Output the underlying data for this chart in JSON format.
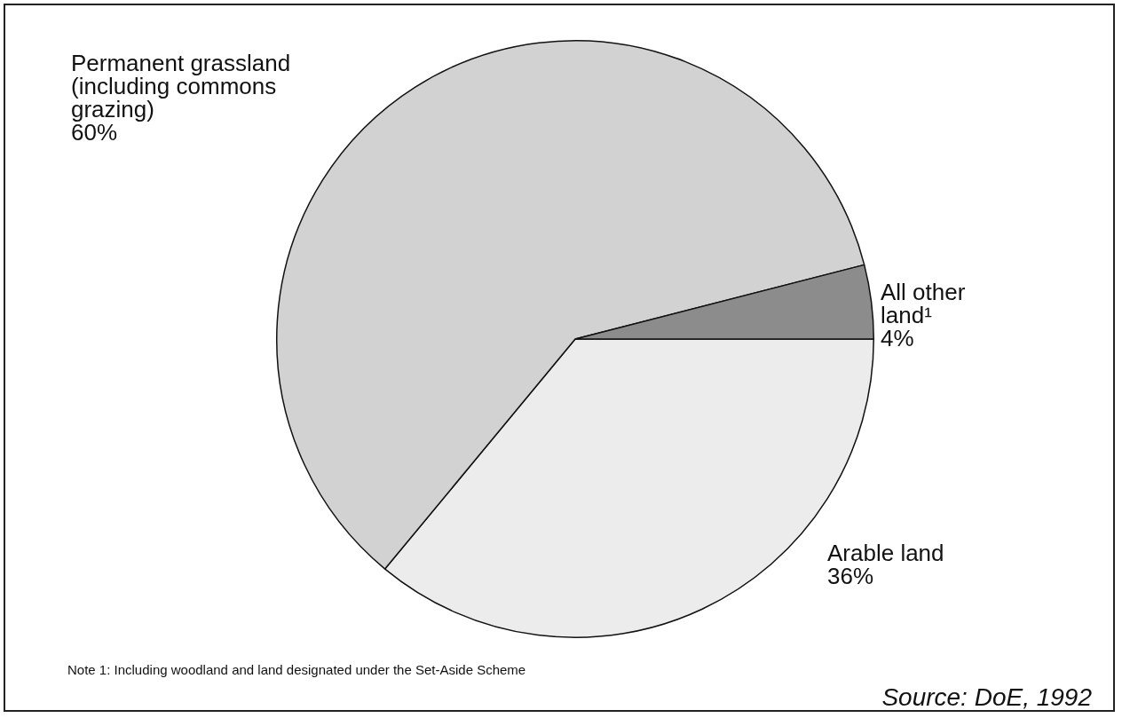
{
  "chart_data": {
    "type": "pie",
    "categories": [
      "Arable land",
      "Permanent grassland (including commons grazing)",
      "All other land¹"
    ],
    "values": [
      36,
      60,
      4
    ],
    "value_labels": [
      "36%",
      "60%",
      "4%"
    ],
    "colors": [
      "#ececec",
      "#d2d2d2",
      "#8c8c8c"
    ],
    "legend": false,
    "annotations": [
      "Note 1: Including woodland and land designated under the Set-Aside Scheme",
      "Source: DoE, 1992"
    ]
  }
}
